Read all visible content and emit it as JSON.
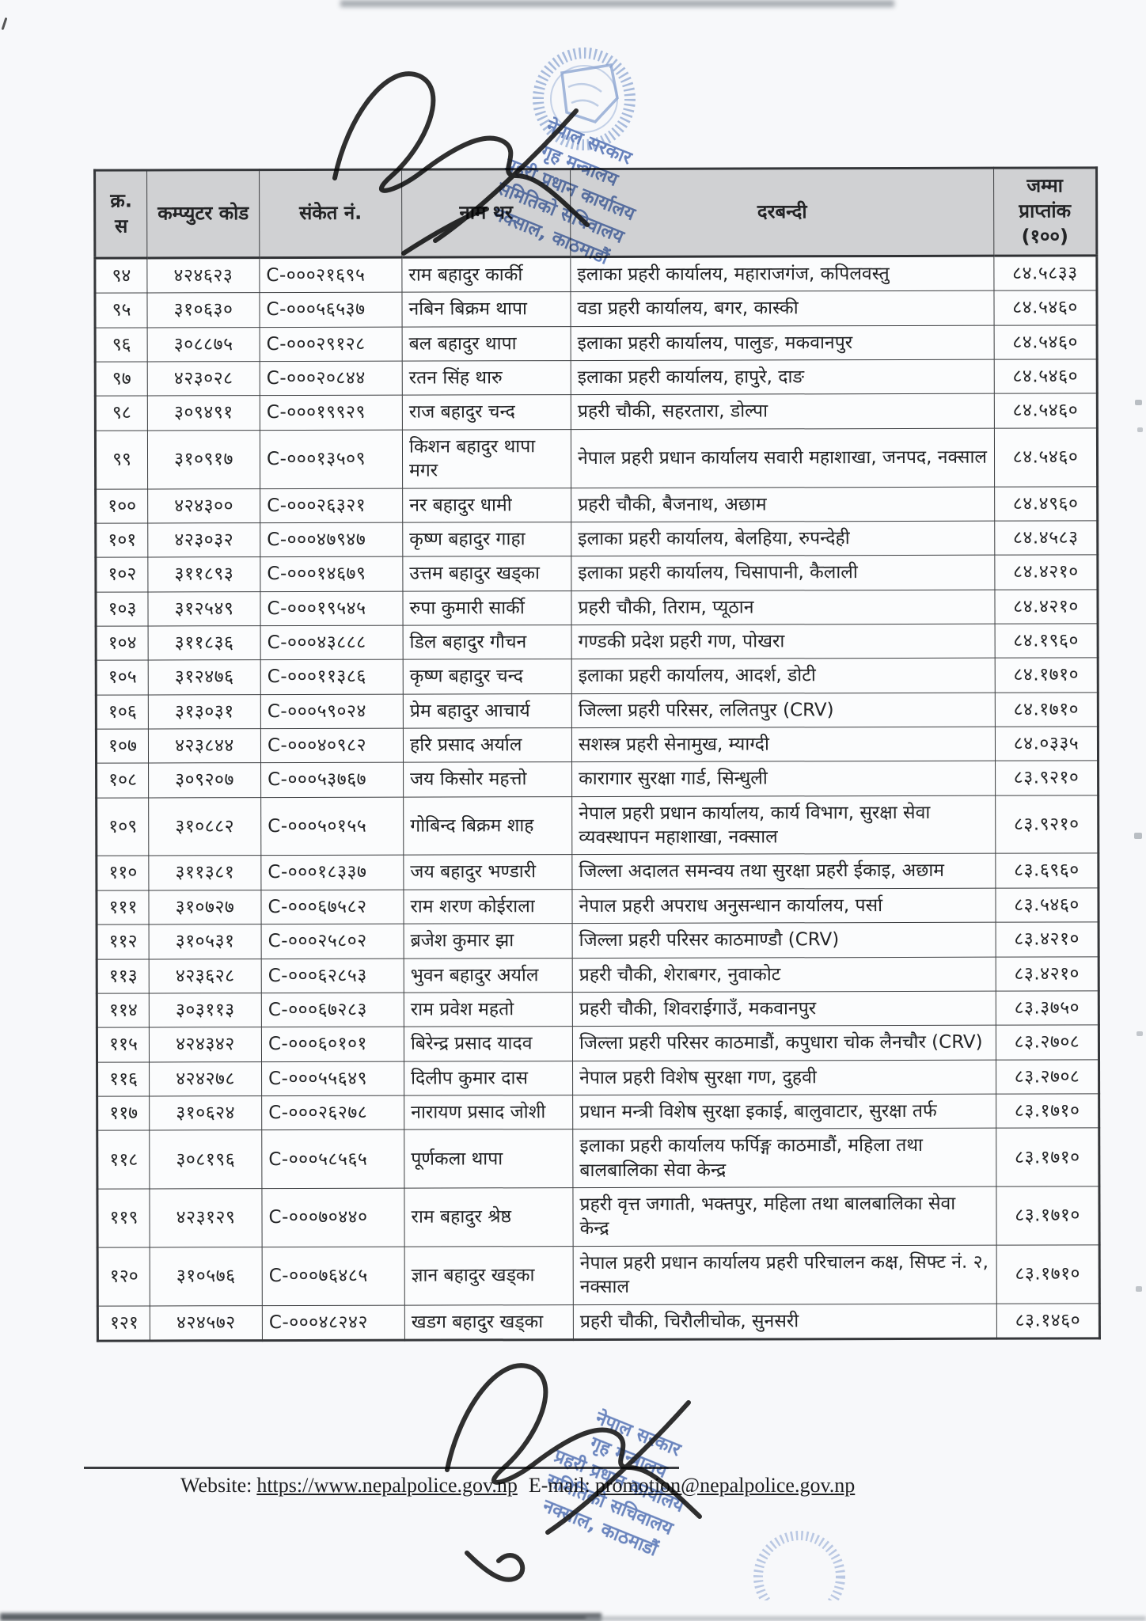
{
  "colors": {
    "header_bg": "#d0d1d3",
    "table_border": "#3a3c3f",
    "stamp_blue": "#4a6cb3",
    "signature_ink": "#1f1f1f",
    "paper": "#f7f8fa"
  },
  "stamp": {
    "lines": [
      "नेपाल सरकार",
      "गृह मन्त्रालय",
      "प्रहरी प्रधान कार्यालय",
      "समितिको सचिवालय",
      "नक्साल, काठमाडौं"
    ]
  },
  "table": {
    "headers": [
      "क्र. स",
      "कम्प्युटर कोड",
      "संकेत नं.",
      "नाम थर",
      "दरबन्दी",
      "जम्मा प्राप्तांक (१००)"
    ],
    "rows": [
      {
        "sn": "९४",
        "code": "४२४६२३",
        "symbol": "C-०००२१६९५",
        "name": "राम बहादुर कार्की",
        "post": "इलाका प्रहरी कार्यालय, महाराजगंज, कपिलवस्तु",
        "marks": "८४.५८३३"
      },
      {
        "sn": "९५",
        "code": "३१०६३०",
        "symbol": "C-०००५६५३७",
        "name": "नबिन बिक्रम थापा",
        "post": "वडा प्रहरी कार्यालय, बगर, कास्की",
        "marks": "८४.५४६०"
      },
      {
        "sn": "९६",
        "code": "३०८८७५",
        "symbol": "C-०००२९१२८",
        "name": "बल बहादुर थापा",
        "post": "इलाका प्रहरी कार्यालय, पालुङ, मकवानपुर",
        "marks": "८४.५४६०"
      },
      {
        "sn": "९७",
        "code": "४२३०२८",
        "symbol": "C-०००२०८४४",
        "name": "रतन सिंह थारु",
        "post": "इलाका प्रहरी कार्यालय, हापुरे, दाङ",
        "marks": "८४.५४६०"
      },
      {
        "sn": "९८",
        "code": "३०९४९१",
        "symbol": "C-०००१९९२९",
        "name": "राज बहादुर चन्द",
        "post": "प्रहरी चौकी, सहरतारा, डोल्पा",
        "marks": "८४.५४६०"
      },
      {
        "sn": "९९",
        "code": "३१०९१७",
        "symbol": "C-०००१३५०९",
        "name": "किशन बहादुर थापा मगर",
        "post": "नेपाल प्रहरी प्रधान कार्यालय सवारी महाशाखा, जनपद, नक्साल",
        "marks": "८४.५४६०"
      },
      {
        "sn": "१००",
        "code": "४२४३००",
        "symbol": "C-०००२६३२१",
        "name": "नर बहादुर धामी",
        "post": "प्रहरी चौकी, बैजनाथ, अछाम",
        "marks": "८४.४९६०"
      },
      {
        "sn": "१०१",
        "code": "४२३०३२",
        "symbol": "C-०००४७९४७",
        "name": "कृष्ण बहादुर गाहा",
        "post": "इलाका प्रहरी कार्यालय, बेलहिया, रुपन्देही",
        "marks": "८४.४५८३"
      },
      {
        "sn": "१०२",
        "code": "३११८९३",
        "symbol": "C-०००१४६७९",
        "name": "उत्तम बहादुर खड्का",
        "post": "इलाका प्रहरी कार्यालय, चिसापानी, कैलाली",
        "marks": "८४.४२१०"
      },
      {
        "sn": "१०३",
        "code": "३१२५४९",
        "symbol": "C-०००१९५४५",
        "name": "रुपा कुमारी सार्की",
        "post": "प्रहरी चौकी, तिराम, प्यूठान",
        "marks": "८४.४२१०"
      },
      {
        "sn": "१०४",
        "code": "३११८३६",
        "symbol": "C-०००४३८८८",
        "name": "डिल बहादुर गौचन",
        "post": "गण्डकी प्रदेश प्रहरी गण, पोखरा",
        "marks": "८४.१९६०"
      },
      {
        "sn": "१०५",
        "code": "३१२४७६",
        "symbol": "C-०००११३८६",
        "name": "कृष्ण बहादुर चन्द",
        "post": "इलाका प्रहरी कार्यालय, आदर्श, डोटी",
        "marks": "८४.१७१०"
      },
      {
        "sn": "१०६",
        "code": "३१३०३१",
        "symbol": "C-०००५९०२४",
        "name": "प्रेम बहादुर आचार्य",
        "post": "जिल्ला प्रहरी परिसर, ललितपुर (CRV)",
        "marks": "८४.१७१०"
      },
      {
        "sn": "१०७",
        "code": "४२३८४४",
        "symbol": "C-०००४०९८२",
        "name": "हरि प्रसाद अर्याल",
        "post": "सशस्त्र प्रहरी सेनामुख, म्याग्दी",
        "marks": "८४.०३३५"
      },
      {
        "sn": "१०८",
        "code": "३०९२०७",
        "symbol": "C-०००५३७६७",
        "name": "जय किसोर महत्तो",
        "post": "कारागार सुरक्षा गार्ड, सिन्धुली",
        "marks": "८३.९२१०"
      },
      {
        "sn": "१०९",
        "code": "३१०८८२",
        "symbol": "C-०००५०१५५",
        "name": "गोबिन्द बिक्रम शाह",
        "post": "नेपाल प्रहरी प्रधान कार्यालय, कार्य विभाग, सुरक्षा सेवा व्यवस्थापन महाशाखा, नक्साल",
        "marks": "८३.९२१०"
      },
      {
        "sn": "११०",
        "code": "३११३८१",
        "symbol": "C-०००१८३३७",
        "name": "जय बहादुर भण्डारी",
        "post": "जिल्ला अदालत समन्वय तथा सुरक्षा प्रहरी ईकाइ, अछाम",
        "marks": "८३.६९६०"
      },
      {
        "sn": "१११",
        "code": "३१०७२७",
        "symbol": "C-०००६७५८२",
        "name": "राम शरण कोईराला",
        "post": "नेपाल प्रहरी अपराध अनुसन्धान कार्यालय, पर्सा",
        "marks": "८३.५४६०"
      },
      {
        "sn": "११२",
        "code": "३१०५३१",
        "symbol": "C-०००२५८०२",
        "name": "ब्रजेश कुमार झा",
        "post": "जिल्ला प्रहरी परिसर काठमाण्डौ (CRV)",
        "marks": "८३.४२१०"
      },
      {
        "sn": "११३",
        "code": "४२३६२८",
        "symbol": "C-०००६२८५३",
        "name": "भुवन बहादुर अर्याल",
        "post": "प्रहरी चौकी, शेराबगर, नुवाकोट",
        "marks": "८३.४२१०"
      },
      {
        "sn": "११४",
        "code": "३०३११३",
        "symbol": "C-०००६७२८३",
        "name": "राम प्रवेश महतो",
        "post": "प्रहरी चौकी, शिवराईगाउँ, मकवानपुर",
        "marks": "८३.३७५०"
      },
      {
        "sn": "११५",
        "code": "४२४३४२",
        "symbol": "C-०००६०१०१",
        "name": "बिरेन्द्र प्रसाद यादव",
        "post": "जिल्ला प्रहरी परिसर काठमाडौं, कपुधारा चोक लैनचौर (CRV)",
        "marks": "८३.२७०८"
      },
      {
        "sn": "११६",
        "code": "४२४२७८",
        "symbol": "C-०००५५६४९",
        "name": "दिलीप कुमार दास",
        "post": "नेपाल प्रहरी विशेष सुरक्षा गण, दुहवी",
        "marks": "८३.२७०८"
      },
      {
        "sn": "११७",
        "code": "३१०६२४",
        "symbol": "C-०००२६२७८",
        "name": "नारायण प्रसाद जोशी",
        "post": "प्रधान मन्त्री विशेष सुरक्षा इकाई, बालुवाटार, सुरक्षा तर्फ",
        "marks": "८३.१७१०"
      },
      {
        "sn": "११८",
        "code": "३०८१९६",
        "symbol": "C-०००५८५६५",
        "name": "पूर्णकला थापा",
        "post": "इलाका प्रहरी कार्यालय फर्पिङ्ग काठमाडौं, महिला तथा बालबालिका सेवा केन्द्र",
        "marks": "८३.१७१०"
      },
      {
        "sn": "११९",
        "code": "४२३१२९",
        "symbol": "C-०००७०४४०",
        "name": "राम बहादुर श्रेष्ठ",
        "post": "प्रहरी वृत्त जगाती, भक्तपुर, महिला तथा बालबालिका सेवा केन्द्र",
        "marks": "८३.१७१०"
      },
      {
        "sn": "१२०",
        "code": "३१०५७६",
        "symbol": "C-०००७६४८५",
        "name": "ज्ञान बहादुर खड्का",
        "post": "नेपाल प्रहरी प्रधान कार्यालय प्रहरी परिचालन कक्ष, सिफ्ट नं. २, नक्साल",
        "marks": "८३.१७१०"
      },
      {
        "sn": "१२१",
        "code": "४२४५७२",
        "symbol": "C-०००४८२४२",
        "name": "खडग बहादुर खड्का",
        "post": "प्रहरी चौकी, चिरौलीचोक, सुनसरी",
        "marks": "८३.१४६०"
      }
    ]
  },
  "footer": {
    "website_label": "Website:",
    "website_url": "https://www.nepalpolice.gov.np",
    "email_label": "E-mail:",
    "email_url": "promotion@nepalpolice.gov.np"
  }
}
